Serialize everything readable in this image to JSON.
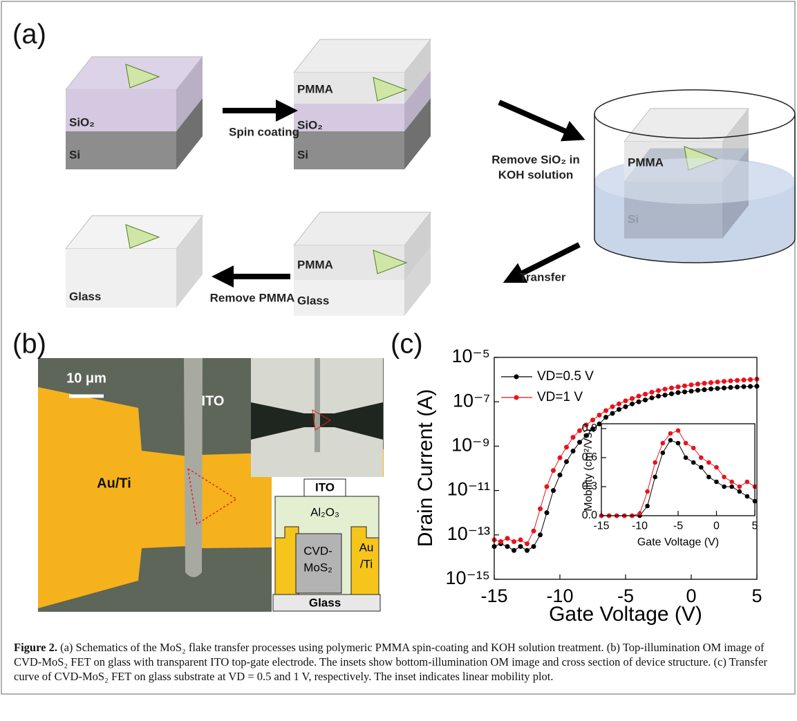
{
  "panel_a": {
    "label": "(a)",
    "stage1": [
      "SiO₂",
      "Si"
    ],
    "step1": "Spin coating",
    "stage2": [
      "PMMA",
      "SiO₂",
      "Si"
    ],
    "step2": [
      "Remove SiO₂ in",
      "KOH solution"
    ],
    "stage3": [
      "PMMA",
      "Si"
    ],
    "step3": "Transfer",
    "stage4": [
      "PMMA",
      "Glass"
    ],
    "step4": "Remove PMMA",
    "stage5": [
      "Glass"
    ]
  },
  "panel_b": {
    "label": "(b)",
    "scale_bar": "10 μm",
    "gate": "ITO",
    "electrode": "Au/Ti",
    "cross_section": {
      "top": "ITO",
      "dielectric": "Al₂O₃",
      "channel": [
        "CVD-",
        "MoS₂"
      ],
      "contact": [
        "Au",
        "/Ti"
      ],
      "substrate": "Glass"
    }
  },
  "panel_c": {
    "label": "(c)"
  },
  "chart_data": [
    {
      "type": "line",
      "markers": true,
      "log_y": true,
      "legend": "upper left",
      "xlabel": "Gate Voltage (V)",
      "ylabel": "Drain Current (A)",
      "x": [
        -15,
        -14.5,
        -14,
        -13.5,
        -13,
        -12.5,
        -12,
        -11.5,
        -11,
        -10.5,
        -10,
        -9.5,
        -9,
        -8.5,
        -8,
        -7.5,
        -7,
        -6.5,
        -6,
        -5.5,
        -5,
        -4.5,
        -4,
        -3.5,
        -3,
        -2.5,
        -2,
        -1.5,
        -1,
        -0.5,
        0,
        0.5,
        1,
        1.5,
        2,
        2.5,
        3,
        3.5,
        4,
        4.5,
        5
      ],
      "series": [
        {
          "name": "VD=0.5 V",
          "color": "#000000",
          "values": [
            3e-14,
            4e-14,
            3e-14,
            2e-14,
            3e-14,
            2e-14,
            3e-14,
            1e-13,
            1e-12,
            1e-11,
            5e-11,
            2e-10,
            6e-10,
            1.5e-09,
            3e-09,
            6e-09,
            1e-08,
            2e-08,
            3e-08,
            4.5e-08,
            6e-08,
            8e-08,
            1e-07,
            1.2e-07,
            1.5e-07,
            1.8e-07,
            2e-07,
            2.3e-07,
            2.6e-07,
            2.8e-07,
            3e-07,
            3.3e-07,
            3.5e-07,
            3.8e-07,
            4e-07,
            4.2e-07,
            4.4e-07,
            4.6e-07,
            4.8e-07,
            4.9e-07,
            5e-07
          ]
        },
        {
          "name": "VD=1 V",
          "color": "#e8141b",
          "values": [
            6e-14,
            5e-14,
            7e-14,
            5e-14,
            6e-14,
            4e-14,
            1.5e-13,
            1.5e-12,
            1.5e-11,
            8e-11,
            3e-10,
            9e-10,
            2.5e-09,
            5e-09,
            9e-09,
            1.5e-08,
            2.5e-08,
            4e-08,
            6e-08,
            8e-08,
            1.1e-07,
            1.4e-07,
            1.8e-07,
            2.2e-07,
            2.7e-07,
            3.2e-07,
            3.7e-07,
            4.2e-07,
            4.7e-07,
            5.2e-07,
            5.8e-07,
            6.3e-07,
            6.8e-07,
            7.3e-07,
            7.8e-07,
            8.3e-07,
            8.8e-07,
            9.2e-07,
            9.6e-07,
            1e-06,
            1.05e-06
          ]
        }
      ],
      "xlim": [
        -15,
        5
      ],
      "xticks": [
        -15,
        -10,
        -5,
        0,
        5
      ],
      "ylim": [
        1e-15,
        1e-05
      ],
      "yticks": [
        {
          "value": 1e-15,
          "label": "10⁻¹⁵"
        },
        {
          "value": 1e-13,
          "label": "10⁻¹³"
        },
        {
          "value": 1e-11,
          "label": "10⁻¹¹"
        },
        {
          "value": 1e-09,
          "label": "10⁻⁹"
        },
        {
          "value": 1e-07,
          "label": "10⁻⁷"
        },
        {
          "value": 1e-05,
          "label": "10⁻⁵"
        }
      ]
    },
    {
      "type": "line",
      "markers": true,
      "log_y": false,
      "xlabel": "Gate Voltage (V)",
      "ylabel": "Mobility (cm²/Vs)",
      "x": [
        -15,
        -14,
        -13,
        -12,
        -11,
        -10,
        -9,
        -8,
        -7,
        -6,
        -5,
        -4,
        -3,
        -2,
        -1,
        0,
        1,
        2,
        3,
        4,
        5
      ],
      "series": [
        {
          "color": "#000000",
          "values": [
            0,
            0,
            0,
            0,
            0,
            0,
            0.1,
            0.4,
            0.65,
            0.78,
            0.75,
            0.6,
            0.55,
            0.5,
            0.4,
            0.35,
            0.3,
            0.3,
            0.25,
            0.2,
            0.15
          ]
        },
        {
          "color": "#e8141b",
          "values": [
            0,
            0,
            0,
            0,
            0,
            0.02,
            0.25,
            0.55,
            0.75,
            0.85,
            0.88,
            0.75,
            0.7,
            0.6,
            0.55,
            0.5,
            0.4,
            0.35,
            0.3,
            0.35,
            0.3
          ]
        }
      ],
      "xlim": [
        -15,
        5
      ],
      "xticks": [
        -15,
        -10,
        -5,
        0,
        5
      ],
      "ylim": [
        0,
        0.95
      ],
      "yticks": [
        {
          "value": 0,
          "label": "0.0"
        },
        0.3,
        0.6,
        0.9
      ]
    }
  ],
  "caption": {
    "label": "Figure 2.",
    "text": "(a) Schematics of the MoS₂ flake transfer processes using polymeric PMMA spin-coating and KOH solution treatment. (b) Top-illumination OM image of CVD-MoS₂ FET on glass with transparent ITO top-gate electrode. The insets show bottom-illumination OM image and cross section of device structure. (c) Transfer curve of CVD-MoS₂ FET on glass substrate at VD = 0.5 and 1 V, respectively. The inset indicates linear mobility plot."
  }
}
